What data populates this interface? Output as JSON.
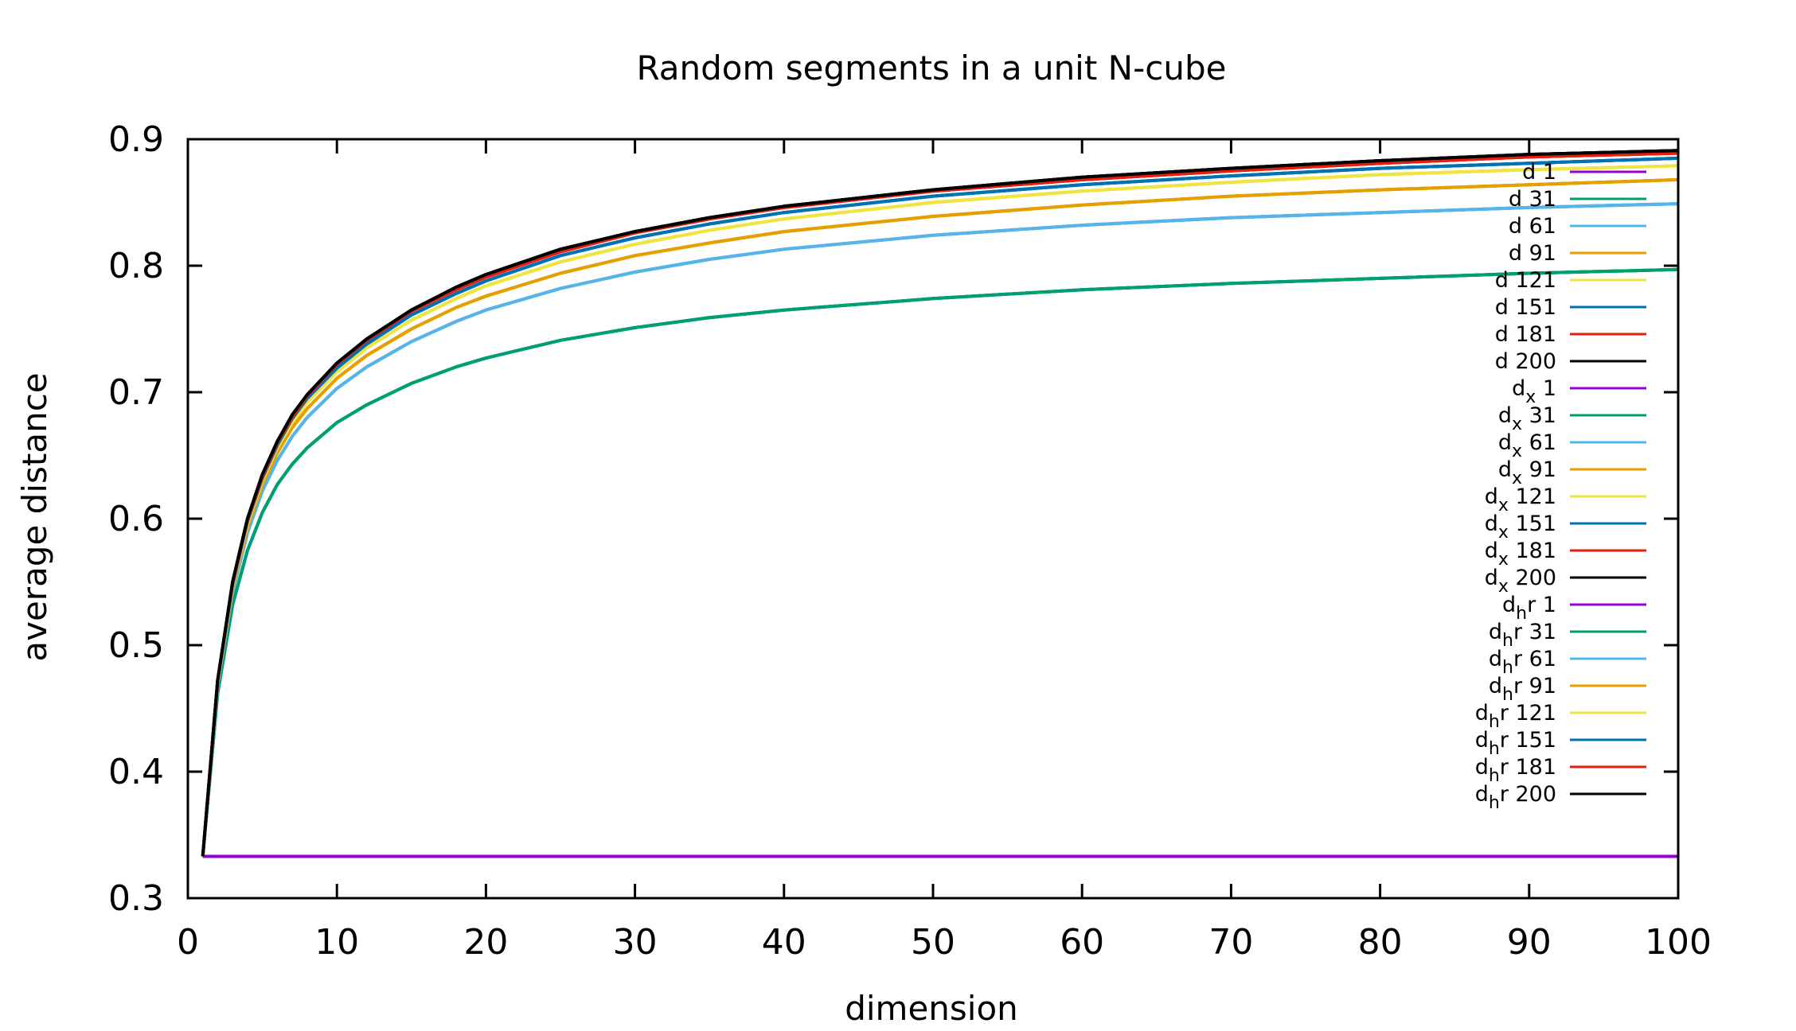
{
  "chart_data": {
    "type": "line",
    "title": "Random segments in a unit N-cube",
    "xlabel": "dimension",
    "ylabel": "average distance",
    "xlim": [
      0,
      100
    ],
    "ylim": [
      0.3,
      0.9
    ],
    "xticks": [
      "0",
      "10",
      "20",
      "30",
      "40",
      "50",
      "60",
      "70",
      "80",
      "90",
      "100"
    ],
    "yticks": [
      "0.3",
      "0.4",
      "0.5",
      "0.6",
      "0.7",
      "0.8",
      "0.9"
    ],
    "xtick_values": [
      0,
      10,
      20,
      30,
      40,
      50,
      60,
      70,
      80,
      90,
      100
    ],
    "ytick_values": [
      0.3,
      0.4,
      0.5,
      0.6,
      0.7,
      0.8,
      0.9
    ],
    "grid": false,
    "legend_position": "top-right",
    "x": [
      1,
      2,
      3,
      4,
      5,
      6,
      7,
      8,
      10,
      12,
      15,
      18,
      20,
      25,
      30,
      35,
      40,
      50,
      60,
      70,
      80,
      90,
      100
    ],
    "series": [
      {
        "name": "d 1",
        "color": "#9400d3",
        "values": [
          0.333,
          0.333,
          0.333,
          0.333,
          0.333,
          0.333,
          0.333,
          0.333,
          0.333,
          0.333,
          0.333,
          0.333,
          0.333,
          0.333,
          0.333,
          0.333,
          0.333,
          0.333,
          0.333,
          0.333,
          0.333,
          0.333,
          0.333
        ]
      },
      {
        "name": "d 31",
        "color": "#009e73",
        "values": [
          0.333,
          0.462,
          0.532,
          0.575,
          0.605,
          0.627,
          0.643,
          0.656,
          0.676,
          0.69,
          0.707,
          0.72,
          0.727,
          0.741,
          0.751,
          0.759,
          0.765,
          0.774,
          0.781,
          0.786,
          0.79,
          0.794,
          0.797
        ]
      },
      {
        "name": "d 61",
        "color": "#56b4e9",
        "values": [
          0.333,
          0.468,
          0.542,
          0.589,
          0.622,
          0.646,
          0.665,
          0.68,
          0.703,
          0.72,
          0.74,
          0.756,
          0.765,
          0.782,
          0.795,
          0.805,
          0.813,
          0.824,
          0.832,
          0.838,
          0.842,
          0.846,
          0.849
        ]
      },
      {
        "name": "d 91",
        "color": "#e69f00",
        "values": [
          0.333,
          0.47,
          0.545,
          0.593,
          0.627,
          0.652,
          0.672,
          0.687,
          0.711,
          0.729,
          0.75,
          0.767,
          0.776,
          0.794,
          0.808,
          0.818,
          0.827,
          0.839,
          0.848,
          0.855,
          0.86,
          0.864,
          0.868
        ]
      },
      {
        "name": "d 121",
        "color": "#f0e442",
        "values": [
          0.333,
          0.471,
          0.547,
          0.596,
          0.63,
          0.656,
          0.676,
          0.692,
          0.716,
          0.735,
          0.757,
          0.774,
          0.784,
          0.803,
          0.817,
          0.828,
          0.837,
          0.85,
          0.859,
          0.866,
          0.872,
          0.876,
          0.879
        ]
      },
      {
        "name": "d 151",
        "color": "#0072b2",
        "values": [
          0.333,
          0.472,
          0.548,
          0.598,
          0.632,
          0.658,
          0.679,
          0.695,
          0.719,
          0.738,
          0.761,
          0.778,
          0.788,
          0.808,
          0.822,
          0.833,
          0.842,
          0.855,
          0.864,
          0.871,
          0.877,
          0.881,
          0.885
        ]
      },
      {
        "name": "d 181",
        "color": "#e51e10",
        "values": [
          0.333,
          0.472,
          0.549,
          0.599,
          0.633,
          0.66,
          0.68,
          0.697,
          0.722,
          0.741,
          0.764,
          0.781,
          0.791,
          0.811,
          0.826,
          0.837,
          0.846,
          0.859,
          0.868,
          0.875,
          0.881,
          0.886,
          0.889
        ]
      },
      {
        "name": "d 200",
        "color": "#000000",
        "values": [
          0.333,
          0.472,
          0.55,
          0.6,
          0.635,
          0.661,
          0.682,
          0.698,
          0.723,
          0.742,
          0.765,
          0.783,
          0.793,
          0.813,
          0.827,
          0.838,
          0.847,
          0.86,
          0.87,
          0.877,
          0.883,
          0.888,
          0.891
        ]
      },
      {
        "name": "dx 1",
        "color": "#9400d3",
        "values": [
          0.333,
          0.333,
          0.333,
          0.333,
          0.333,
          0.333,
          0.333,
          0.333,
          0.333,
          0.333,
          0.333,
          0.333,
          0.333,
          0.333,
          0.333,
          0.333,
          0.333,
          0.333,
          0.333,
          0.333,
          0.333,
          0.333,
          0.333
        ]
      },
      {
        "name": "dx 31",
        "color": "#009e73",
        "values": [
          0.333,
          0.462,
          0.532,
          0.575,
          0.605,
          0.627,
          0.643,
          0.656,
          0.676,
          0.69,
          0.707,
          0.72,
          0.727,
          0.741,
          0.751,
          0.759,
          0.765,
          0.774,
          0.781,
          0.786,
          0.79,
          0.794,
          0.797
        ]
      },
      {
        "name": "dx 61",
        "color": "#56b4e9",
        "values": [
          0.333,
          0.468,
          0.542,
          0.589,
          0.622,
          0.646,
          0.665,
          0.68,
          0.703,
          0.72,
          0.74,
          0.756,
          0.765,
          0.782,
          0.795,
          0.805,
          0.813,
          0.824,
          0.832,
          0.838,
          0.842,
          0.846,
          0.849
        ]
      },
      {
        "name": "dx 91",
        "color": "#e69f00",
        "values": [
          0.333,
          0.47,
          0.545,
          0.593,
          0.627,
          0.652,
          0.672,
          0.687,
          0.711,
          0.729,
          0.75,
          0.767,
          0.776,
          0.794,
          0.808,
          0.818,
          0.827,
          0.839,
          0.848,
          0.855,
          0.86,
          0.864,
          0.868
        ]
      },
      {
        "name": "dx 121",
        "color": "#f0e442",
        "values": [
          0.333,
          0.471,
          0.547,
          0.596,
          0.63,
          0.656,
          0.676,
          0.692,
          0.716,
          0.735,
          0.757,
          0.774,
          0.784,
          0.803,
          0.817,
          0.828,
          0.837,
          0.85,
          0.859,
          0.866,
          0.872,
          0.876,
          0.879
        ]
      },
      {
        "name": "dx 151",
        "color": "#0072b2",
        "values": [
          0.333,
          0.472,
          0.548,
          0.598,
          0.632,
          0.658,
          0.679,
          0.695,
          0.719,
          0.738,
          0.761,
          0.778,
          0.788,
          0.808,
          0.822,
          0.833,
          0.842,
          0.855,
          0.864,
          0.871,
          0.877,
          0.881,
          0.885
        ]
      },
      {
        "name": "dx 181",
        "color": "#e51e10",
        "values": [
          0.333,
          0.472,
          0.549,
          0.599,
          0.633,
          0.66,
          0.68,
          0.697,
          0.722,
          0.741,
          0.764,
          0.781,
          0.791,
          0.811,
          0.826,
          0.837,
          0.846,
          0.859,
          0.868,
          0.875,
          0.881,
          0.886,
          0.889
        ]
      },
      {
        "name": "dx 200",
        "color": "#000000",
        "values": [
          0.333,
          0.472,
          0.55,
          0.6,
          0.635,
          0.661,
          0.682,
          0.698,
          0.723,
          0.742,
          0.765,
          0.783,
          0.793,
          0.813,
          0.827,
          0.838,
          0.847,
          0.86,
          0.87,
          0.877,
          0.883,
          0.888,
          0.891
        ]
      },
      {
        "name": "dhr 1",
        "color": "#9400d3",
        "values": [
          0.333,
          0.333,
          0.333,
          0.333,
          0.333,
          0.333,
          0.333,
          0.333,
          0.333,
          0.333,
          0.333,
          0.333,
          0.333,
          0.333,
          0.333,
          0.333,
          0.333,
          0.333,
          0.333,
          0.333,
          0.333,
          0.333,
          0.333
        ]
      },
      {
        "name": "dhr 31",
        "color": "#009e73",
        "values": [
          0.333,
          0.462,
          0.532,
          0.575,
          0.605,
          0.627,
          0.643,
          0.656,
          0.676,
          0.69,
          0.707,
          0.72,
          0.727,
          0.741,
          0.751,
          0.759,
          0.765,
          0.774,
          0.781,
          0.786,
          0.79,
          0.794,
          0.797
        ]
      },
      {
        "name": "dhr 61",
        "color": "#56b4e9",
        "values": [
          0.333,
          0.468,
          0.542,
          0.589,
          0.622,
          0.646,
          0.665,
          0.68,
          0.703,
          0.72,
          0.74,
          0.756,
          0.765,
          0.782,
          0.795,
          0.805,
          0.813,
          0.824,
          0.832,
          0.838,
          0.842,
          0.846,
          0.849
        ]
      },
      {
        "name": "dhr 91",
        "color": "#e69f00",
        "values": [
          0.333,
          0.47,
          0.545,
          0.593,
          0.627,
          0.652,
          0.672,
          0.687,
          0.711,
          0.729,
          0.75,
          0.767,
          0.776,
          0.794,
          0.808,
          0.818,
          0.827,
          0.839,
          0.848,
          0.855,
          0.86,
          0.864,
          0.868
        ]
      },
      {
        "name": "dhr 121",
        "color": "#f0e442",
        "values": [
          0.333,
          0.471,
          0.547,
          0.596,
          0.63,
          0.656,
          0.676,
          0.692,
          0.716,
          0.735,
          0.757,
          0.774,
          0.784,
          0.803,
          0.817,
          0.828,
          0.837,
          0.85,
          0.859,
          0.866,
          0.872,
          0.876,
          0.879
        ]
      },
      {
        "name": "dhr 151",
        "color": "#0072b2",
        "values": [
          0.333,
          0.472,
          0.548,
          0.598,
          0.632,
          0.658,
          0.679,
          0.695,
          0.719,
          0.738,
          0.761,
          0.778,
          0.788,
          0.808,
          0.822,
          0.833,
          0.842,
          0.855,
          0.864,
          0.871,
          0.877,
          0.881,
          0.885
        ]
      },
      {
        "name": "dhr 181",
        "color": "#e51e10",
        "values": [
          0.333,
          0.472,
          0.549,
          0.599,
          0.633,
          0.66,
          0.68,
          0.697,
          0.722,
          0.741,
          0.764,
          0.781,
          0.791,
          0.811,
          0.826,
          0.837,
          0.846,
          0.859,
          0.868,
          0.875,
          0.881,
          0.886,
          0.889
        ]
      },
      {
        "name": "dhr 200",
        "color": "#000000",
        "values": [
          0.333,
          0.472,
          0.55,
          0.6,
          0.635,
          0.661,
          0.682,
          0.698,
          0.723,
          0.742,
          0.765,
          0.783,
          0.793,
          0.813,
          0.827,
          0.838,
          0.847,
          0.86,
          0.87,
          0.877,
          0.883,
          0.888,
          0.891
        ]
      }
    ],
    "legend": [
      {
        "base": "d",
        "sub": "",
        "suffix": " 1"
      },
      {
        "base": "d",
        "sub": "",
        "suffix": " 31"
      },
      {
        "base": "d",
        "sub": "",
        "suffix": " 61"
      },
      {
        "base": "d",
        "sub": "",
        "suffix": " 91"
      },
      {
        "base": "d",
        "sub": "",
        "suffix": " 121"
      },
      {
        "base": "d",
        "sub": "",
        "suffix": " 151"
      },
      {
        "base": "d",
        "sub": "",
        "suffix": " 181"
      },
      {
        "base": "d",
        "sub": "",
        "suffix": " 200"
      },
      {
        "base": "d",
        "sub": "x",
        "suffix": " 1"
      },
      {
        "base": "d",
        "sub": "x",
        "suffix": " 31"
      },
      {
        "base": "d",
        "sub": "x",
        "suffix": " 61"
      },
      {
        "base": "d",
        "sub": "x",
        "suffix": " 91"
      },
      {
        "base": "d",
        "sub": "x",
        "suffix": " 121"
      },
      {
        "base": "d",
        "sub": "x",
        "suffix": " 151"
      },
      {
        "base": "d",
        "sub": "x",
        "suffix": " 181"
      },
      {
        "base": "d",
        "sub": "x",
        "suffix": " 200"
      },
      {
        "base": "d",
        "sub": "h",
        "suffix": "r 1"
      },
      {
        "base": "d",
        "sub": "h",
        "suffix": "r 31"
      },
      {
        "base": "d",
        "sub": "h",
        "suffix": "r 61"
      },
      {
        "base": "d",
        "sub": "h",
        "suffix": "r 91"
      },
      {
        "base": "d",
        "sub": "h",
        "suffix": "r 121"
      },
      {
        "base": "d",
        "sub": "h",
        "suffix": "r 151"
      },
      {
        "base": "d",
        "sub": "h",
        "suffix": "r 181"
      },
      {
        "base": "d",
        "sub": "h",
        "suffix": "r 200"
      }
    ]
  }
}
